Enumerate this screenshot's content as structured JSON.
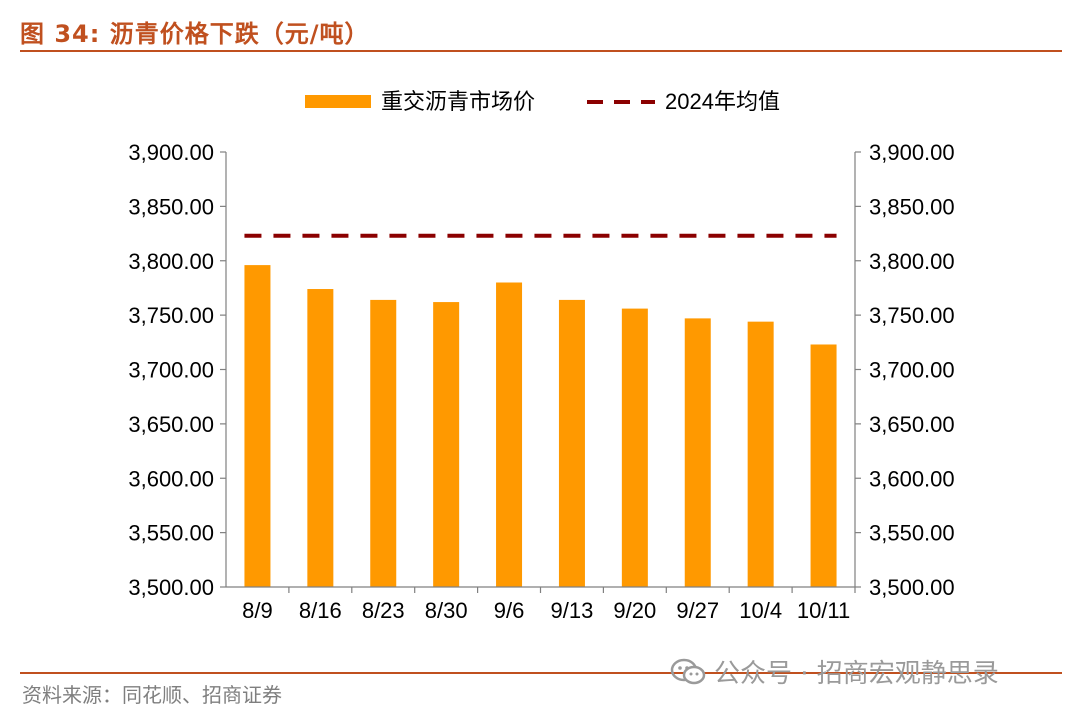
{
  "header": {
    "title": "图 34: 沥青价格下跌（元/吨）"
  },
  "footer": {
    "source": "资料来源：同花顺、招商证券"
  },
  "watermark": {
    "text": "公众号 · 招商宏观静思录",
    "icon": "wechat-icon"
  },
  "colors": {
    "bar": "#ff9900",
    "avg_line": "#8b0000",
    "title": "#c0501f",
    "axis": "#808080"
  },
  "chart_data": {
    "type": "bar",
    "categories": [
      "8/9",
      "8/16",
      "8/23",
      "8/30",
      "9/6",
      "9/13",
      "9/20",
      "9/27",
      "10/4",
      "10/11"
    ],
    "series": [
      {
        "name": "重交沥青市场价",
        "type": "bar",
        "values": [
          3796,
          3774,
          3764,
          3762,
          3780,
          3764,
          3756,
          3747,
          3744,
          3723
        ]
      },
      {
        "name": "2024年均值",
        "type": "line",
        "style": "dashed",
        "values": [
          3823,
          3823,
          3823,
          3823,
          3823,
          3823,
          3823,
          3823,
          3823,
          3823
        ]
      }
    ],
    "y_ticks": [
      "3,500.00",
      "3,550.00",
      "3,600.00",
      "3,650.00",
      "3,700.00",
      "3,750.00",
      "3,800.00",
      "3,850.00",
      "3,900.00"
    ],
    "ylim": [
      3500,
      3900
    ],
    "secondary_ylim": [
      3500,
      3900
    ],
    "legend_position": "top",
    "grid": false
  }
}
